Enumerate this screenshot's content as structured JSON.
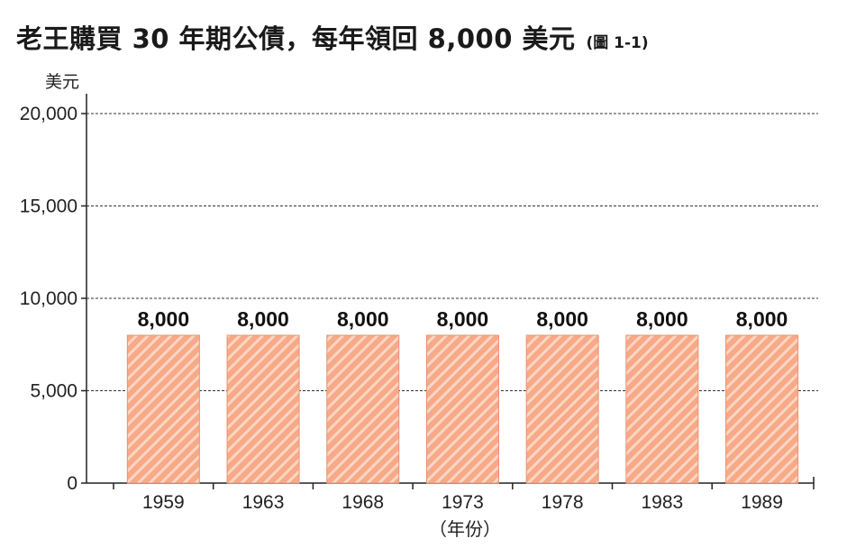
{
  "header": {
    "title": "老王購買 30 年期公債，每年領回 8,000 美元",
    "figure_ref": "(圖 1-1)"
  },
  "chart_data": {
    "type": "bar",
    "categories": [
      "1959",
      "1963",
      "1968",
      "1973",
      "1978",
      "1983",
      "1989"
    ],
    "values": [
      8000,
      8000,
      8000,
      8000,
      8000,
      8000,
      8000
    ],
    "data_labels": [
      "8,000",
      "8,000",
      "8,000",
      "8,000",
      "8,000",
      "8,000",
      "8,000"
    ],
    "ylabel": "美元",
    "xlabel": "（年份）",
    "ylim": [
      0,
      20000
    ],
    "yticks": [
      0,
      5000,
      10000,
      15000,
      20000
    ],
    "ytick_labels": [
      "0",
      "5,000",
      "10,000",
      "15,000",
      "20,000"
    ],
    "grid": "horizontal dashed",
    "bar_color": "#f7a988",
    "bar_hatch_color": "#fbd6c3",
    "bar_edge_color": "#e8926e"
  }
}
